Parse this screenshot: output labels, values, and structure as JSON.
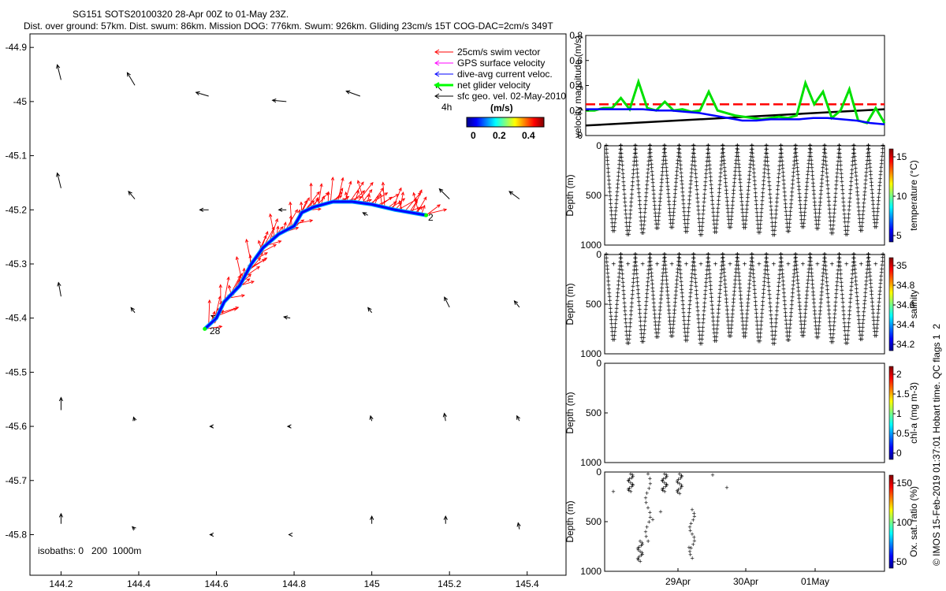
{
  "chart_data": [
    {
      "type": "map",
      "title_line1": "SG151 SOTS20100320 28-Apr 00Z to 01-May 23Z.",
      "title_line2": "Dist. over ground: 57km. Dist. swum: 86km. Mission DOG: 776km. Swum: 926km. Gliding 23cm/s 15T COG-DAC=2cm/s 349T",
      "xlim": [
        144.12,
        145.5
      ],
      "ylim": [
        -45.875,
        -44.875
      ],
      "x_ticks": [
        "144.2",
        "144.4",
        "144.6",
        "144.8",
        "145",
        "145.2",
        "145.4"
      ],
      "y_ticks": [
        "-44.9",
        "-45",
        "-45.1",
        "-45.2",
        "-45.3",
        "-45.4",
        "-45.5",
        "-45.6",
        "-45.7",
        "-45.8"
      ],
      "legend": [
        {
          "label": "25cm/s swim vector",
          "color": "#ff0000"
        },
        {
          "label": "GPS surface velocity",
          "color": "#ff00ff"
        },
        {
          "label": "dive-avg current veloc.",
          "color": "#0000ff"
        },
        {
          "label": "net glider velocity",
          "color": "#00ff00"
        },
        {
          "label": "sfc geo. vel. 02-May-2010",
          "color": "#000000"
        }
      ],
      "legend_note": "4h",
      "colorbar_title": "(m/s)",
      "colorbar_ticks": [
        "0",
        "0.2",
        "0.4"
      ],
      "isobaths_text": "isobaths: 0   200  1000m",
      "start_label": "2",
      "end_label": "28",
      "track": [
        [
          145.14,
          -45.21
        ],
        [
          145.06,
          -45.2
        ],
        [
          145.0,
          -45.19
        ],
        [
          144.95,
          -45.185
        ],
        [
          144.9,
          -45.185
        ],
        [
          144.85,
          -45.195
        ],
        [
          144.82,
          -45.205
        ],
        [
          144.8,
          -45.23
        ],
        [
          144.76,
          -45.245
        ],
        [
          144.72,
          -45.27
        ],
        [
          144.69,
          -45.3
        ],
        [
          144.66,
          -45.34
        ],
        [
          144.62,
          -45.37
        ],
        [
          144.6,
          -45.4
        ],
        [
          144.57,
          -45.42
        ]
      ],
      "geo_arrows": [
        {
          "lon": 144.2,
          "lat": -44.96,
          "u": -0.3,
          "v": 1.2
        },
        {
          "lon": 144.39,
          "lat": -44.97,
          "u": -0.6,
          "v": 1.0
        },
        {
          "lon": 144.58,
          "lat": -44.99,
          "u": -1.0,
          "v": 0.3
        },
        {
          "lon": 144.78,
          "lat": -45.0,
          "u": -1.1,
          "v": 0.1
        },
        {
          "lon": 144.97,
          "lat": -44.99,
          "u": -1.1,
          "v": 0.4
        },
        {
          "lon": 145.18,
          "lat": -44.98,
          "u": -0.5,
          "v": 0.5
        },
        {
          "lon": 144.2,
          "lat": -45.16,
          "u": -0.3,
          "v": 1.2
        },
        {
          "lon": 144.39,
          "lat": -45.18,
          "u": -0.5,
          "v": 0.6
        },
        {
          "lon": 144.58,
          "lat": -45.2,
          "u": -0.7,
          "v": 0.0
        },
        {
          "lon": 144.78,
          "lat": -45.2,
          "u": -0.6,
          "v": 0.0
        },
        {
          "lon": 144.99,
          "lat": -45.21,
          "u": -0.4,
          "v": 0.2
        },
        {
          "lon": 145.2,
          "lat": -45.18,
          "u": -0.8,
          "v": 0.8
        },
        {
          "lon": 145.38,
          "lat": -45.18,
          "u": -0.8,
          "v": 0.6
        },
        {
          "lon": 144.2,
          "lat": -45.36,
          "u": -0.2,
          "v": 1.1
        },
        {
          "lon": 144.39,
          "lat": -45.39,
          "u": -0.3,
          "v": 0.4
        },
        {
          "lon": 144.6,
          "lat": -45.4,
          "u": -0.4,
          "v": 0.2
        },
        {
          "lon": 144.79,
          "lat": -45.4,
          "u": -0.5,
          "v": 0.1
        },
        {
          "lon": 145.0,
          "lat": -45.39,
          "u": -0.3,
          "v": 0.4
        },
        {
          "lon": 145.2,
          "lat": -45.38,
          "u": -0.4,
          "v": 0.8
        },
        {
          "lon": 145.38,
          "lat": -45.38,
          "u": -0.4,
          "v": 0.5
        },
        {
          "lon": 144.2,
          "lat": -45.57,
          "u": 0.0,
          "v": 1.0
        },
        {
          "lon": 144.39,
          "lat": -45.59,
          "u": -0.1,
          "v": 0.3
        },
        {
          "lon": 144.59,
          "lat": -45.6,
          "u": -0.2,
          "v": 0.0
        },
        {
          "lon": 144.79,
          "lat": -45.6,
          "u": -0.2,
          "v": 0.0
        },
        {
          "lon": 145.0,
          "lat": -45.59,
          "u": -0.1,
          "v": 0.4
        },
        {
          "lon": 145.19,
          "lat": -45.59,
          "u": -0.1,
          "v": 0.6
        },
        {
          "lon": 145.38,
          "lat": -45.59,
          "u": -0.2,
          "v": 0.4
        },
        {
          "lon": 144.2,
          "lat": -45.78,
          "u": 0.0,
          "v": 0.8
        },
        {
          "lon": 144.39,
          "lat": -45.79,
          "u": -0.2,
          "v": 0.2
        },
        {
          "lon": 144.59,
          "lat": -45.8,
          "u": -0.2,
          "v": 0.0
        },
        {
          "lon": 144.79,
          "lat": -45.8,
          "u": -0.1,
          "v": 0.0
        },
        {
          "lon": 145.0,
          "lat": -45.78,
          "u": 0.0,
          "v": 0.6
        },
        {
          "lon": 145.19,
          "lat": -45.78,
          "u": 0.0,
          "v": 0.6
        },
        {
          "lon": 145.38,
          "lat": -45.79,
          "u": -0.1,
          "v": 0.5
        }
      ]
    },
    {
      "type": "line",
      "ylabel": "velocity magnitude (m/s)",
      "ylim": [
        0,
        0.8
      ],
      "y_ticks": [
        "0",
        "0.2",
        "0.4",
        "0.6",
        "0.8"
      ],
      "series": [
        {
          "color": "#ff0000",
          "style": "dashed",
          "values": [
            0.25,
            0.25
          ]
        },
        {
          "color": "#000000",
          "values": [
            0.08,
            0.21
          ]
        },
        {
          "color": "#00e000",
          "values": [
            0.2,
            0.2,
            0.22,
            0.22,
            0.3,
            0.21,
            0.43,
            0.22,
            0.2,
            0.27,
            0.2,
            0.21,
            0.19,
            0.2,
            0.35,
            0.2,
            0.18,
            0.16,
            0.15,
            0.14,
            0.13,
            0.14,
            0.15,
            0.14,
            0.16,
            0.42,
            0.25,
            0.35,
            0.14,
            0.2,
            0.37,
            0.12,
            0.1,
            0.22,
            0.1
          ]
        },
        {
          "color": "#0000ff",
          "values": [
            0.21,
            0.21,
            0.21,
            0.21,
            0.21,
            0.2,
            0.2,
            0.19,
            0.18,
            0.16,
            0.14,
            0.12,
            0.12,
            0.13,
            0.13,
            0.13,
            0.14,
            0.14,
            0.13,
            0.12,
            0.1,
            0.09
          ]
        }
      ]
    },
    {
      "type": "scatter",
      "ylabel": "Depth (m)",
      "ylim": [
        1000,
        0
      ],
      "y_ticks": [
        "0",
        "500",
        "1000"
      ],
      "colorbar_label": "temperature (°C)",
      "colorbar_ticks": [
        "5",
        "10",
        "15"
      ],
      "dives": 19,
      "max_depth": 900
    },
    {
      "type": "scatter",
      "ylabel": "Depth (m)",
      "ylim": [
        1000,
        0
      ],
      "y_ticks": [
        "0",
        "500",
        "1000"
      ],
      "colorbar_label": "salinity",
      "colorbar_ticks": [
        "34.2",
        "34.4",
        "34.6",
        "34.8",
        "35"
      ],
      "dives": 19,
      "max_depth": 900
    },
    {
      "type": "scatter",
      "ylabel": "Depth (m)",
      "ylim": [
        1000,
        0
      ],
      "y_ticks": [
        "0",
        "500",
        "1000"
      ],
      "colorbar_label": "chl-a (mg m-3)",
      "colorbar_ticks": [
        "0",
        "0.5",
        "1",
        "1.5",
        "2"
      ]
    },
    {
      "type": "scatter",
      "ylabel": "Depth (m)",
      "ylim": [
        1000,
        0
      ],
      "y_ticks": [
        "0",
        "500",
        "1000"
      ],
      "x_ticks": [
        "29Apr",
        "30Apr",
        "01May"
      ],
      "colorbar_label": "Ox. sat. ratio (%)",
      "colorbar_ticks": [
        "50",
        "100",
        "150"
      ]
    }
  ],
  "footer": "© IMOS 15-Feb-2019 01:37:01 Hobart time. QC flags 1  2"
}
